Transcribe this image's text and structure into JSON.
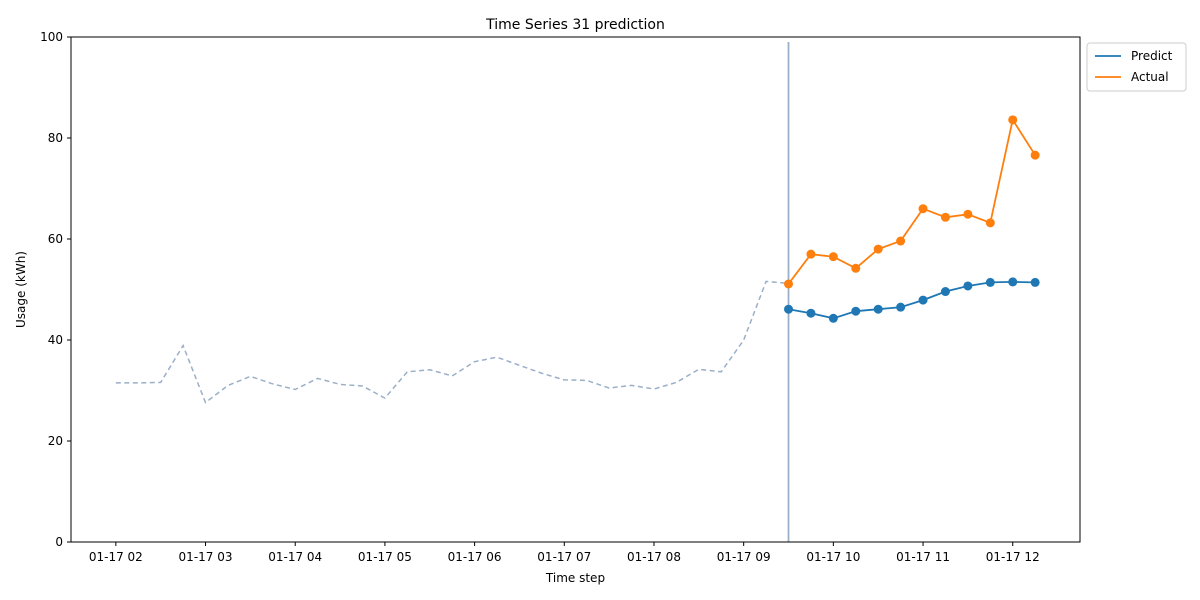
{
  "chart_data": {
    "type": "line",
    "title": "Time Series 31 prediction",
    "xlabel": "Time step",
    "ylabel": "Usage (kWh)",
    "ylim": [
      0,
      100
    ],
    "yticks": [
      0,
      20,
      40,
      60,
      80,
      100
    ],
    "xticks": [
      "01-17 02",
      "01-17 03",
      "01-17 04",
      "01-17 05",
      "01-17 06",
      "01-17 07",
      "01-17 08",
      "01-17 09",
      "01-17 10",
      "01-17 11",
      "01-17 12"
    ],
    "xlim": [
      "01-17 01:30",
      "01-17 12:45"
    ],
    "grid": false,
    "legend_position": "outside-top-right",
    "split_time": "01-17 09:30",
    "history": {
      "color": "#9aafc8",
      "style": "dashed",
      "x": [
        "01-17 02:00",
        "01-17 02:15",
        "01-17 02:30",
        "01-17 02:45",
        "01-17 03:00",
        "01-17 03:15",
        "01-17 03:30",
        "01-17 03:45",
        "01-17 04:00",
        "01-17 04:15",
        "01-17 04:30",
        "01-17 04:45",
        "01-17 05:00",
        "01-17 05:15",
        "01-17 05:30",
        "01-17 05:45",
        "01-17 06:00",
        "01-17 06:15",
        "01-17 06:30",
        "01-17 06:45",
        "01-17 07:00",
        "01-17 07:15",
        "01-17 07:30",
        "01-17 07:45",
        "01-17 08:00",
        "01-17 08:15",
        "01-17 08:30",
        "01-17 08:45",
        "01-17 09:00",
        "01-17 09:15",
        "01-17 09:30"
      ],
      "y": [
        31.5,
        31.5,
        31.6,
        38.9,
        27.6,
        31.0,
        32.8,
        31.3,
        30.2,
        32.4,
        31.2,
        30.9,
        28.5,
        33.7,
        34.1,
        32.9,
        35.7,
        36.6,
        35.0,
        33.4,
        32.1,
        32.0,
        30.5,
        31.0,
        30.3,
        31.6,
        34.2,
        33.7,
        40.0,
        51.6,
        51.2
      ]
    },
    "series": [
      {
        "name": "Predict",
        "color": "#1f77b4",
        "x": [
          "01-17 09:30",
          "01-17 09:45",
          "01-17 10:00",
          "01-17 10:15",
          "01-17 10:30",
          "01-17 10:45",
          "01-17 11:00",
          "01-17 11:15",
          "01-17 11:30",
          "01-17 11:45",
          "01-17 12:00",
          "01-17 12:15"
        ],
        "y": [
          46.1,
          45.3,
          44.3,
          45.7,
          46.1,
          46.5,
          47.9,
          49.6,
          50.7,
          51.4,
          51.5,
          51.4
        ]
      },
      {
        "name": "Actual",
        "color": "#ff7f0e",
        "x": [
          "01-17 09:30",
          "01-17 09:45",
          "01-17 10:00",
          "01-17 10:15",
          "01-17 10:30",
          "01-17 10:45",
          "01-17 11:00",
          "01-17 11:15",
          "01-17 11:30",
          "01-17 11:45",
          "01-17 12:00",
          "01-17 12:15"
        ],
        "y": [
          51.1,
          57.0,
          56.5,
          54.2,
          58.0,
          59.6,
          66.0,
          64.3,
          64.9,
          63.2,
          83.6,
          76.6
        ]
      }
    ]
  }
}
